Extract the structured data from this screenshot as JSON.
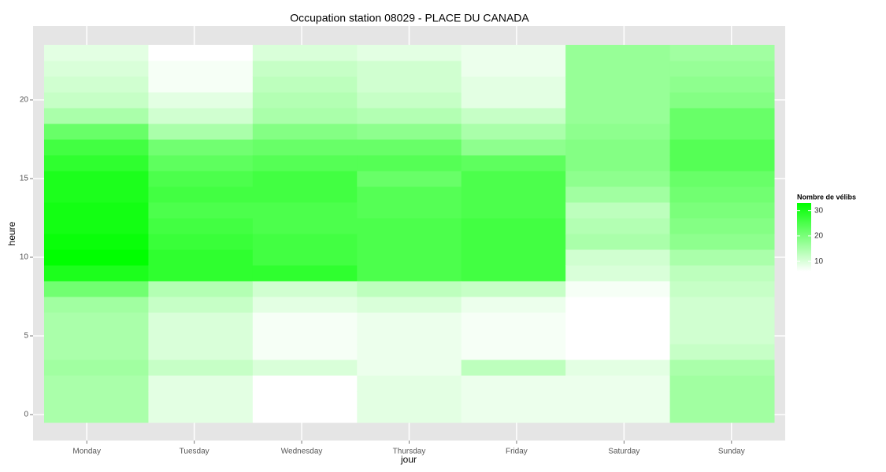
{
  "chart_data": {
    "type": "heatmap",
    "title": "Occupation station 08029 - PLACE DU CANADA",
    "x_label": "jour",
    "y_label": "heure",
    "categories": [
      "Monday",
      "Tuesday",
      "Wednesday",
      "Thursday",
      "Friday",
      "Saturday",
      "Sunday"
    ],
    "y": [
      0,
      1,
      2,
      3,
      4,
      5,
      6,
      7,
      8,
      9,
      10,
      11,
      12,
      13,
      14,
      15,
      16,
      17,
      18,
      19,
      20,
      21,
      22,
      23
    ],
    "values": [
      [
        15,
        15,
        15,
        16,
        15,
        15,
        15,
        16,
        21,
        30,
        33,
        32,
        31,
        31,
        30,
        30,
        28,
        26,
        22,
        15,
        12,
        11,
        10,
        9
      ],
      [
        9,
        9,
        9,
        12,
        10,
        10,
        10,
        12,
        14,
        28,
        28,
        27,
        26,
        25,
        26,
        25,
        23,
        21,
        15,
        11,
        9,
        7,
        7,
        6
      ],
      [
        6,
        6,
        6,
        10,
        7,
        7,
        7,
        9,
        11,
        28,
        26,
        26,
        25,
        25,
        26,
        26,
        24,
        22,
        19,
        15,
        14,
        13,
        12,
        10
      ],
      [
        9,
        9,
        9,
        8,
        8,
        8,
        8,
        10,
        13,
        25,
        25,
        25,
        25,
        24,
        24,
        22,
        24,
        22,
        18,
        14,
        12,
        11,
        11,
        9
      ],
      [
        8,
        8,
        8,
        13,
        7,
        7,
        7,
        8,
        12,
        26,
        26,
        26,
        26,
        25,
        25,
        25,
        23,
        18,
        15,
        12,
        9,
        9,
        8,
        8
      ],
      [
        8,
        8,
        8,
        9,
        6,
        6,
        6,
        6,
        7,
        10,
        11,
        15,
        14,
        13,
        16,
        18,
        19,
        19,
        18,
        17,
        17,
        17,
        17,
        17
      ],
      [
        16,
        16,
        16,
        15,
        12,
        11,
        11,
        11,
        12,
        13,
        15,
        18,
        19,
        20,
        21,
        22,
        24,
        24,
        22,
        22,
        19,
        18,
        17,
        16
      ]
    ],
    "ylim": [
      -0.5,
      23.5
    ],
    "yticks": [
      0,
      5,
      10,
      15,
      20
    ],
    "legend_title": "Nombre de vélibs",
    "color_low": "#ffffff",
    "color_high": "#00ff00",
    "color_limits": [
      6,
      33
    ],
    "legend_ticks": [
      10,
      20,
      30
    ]
  }
}
